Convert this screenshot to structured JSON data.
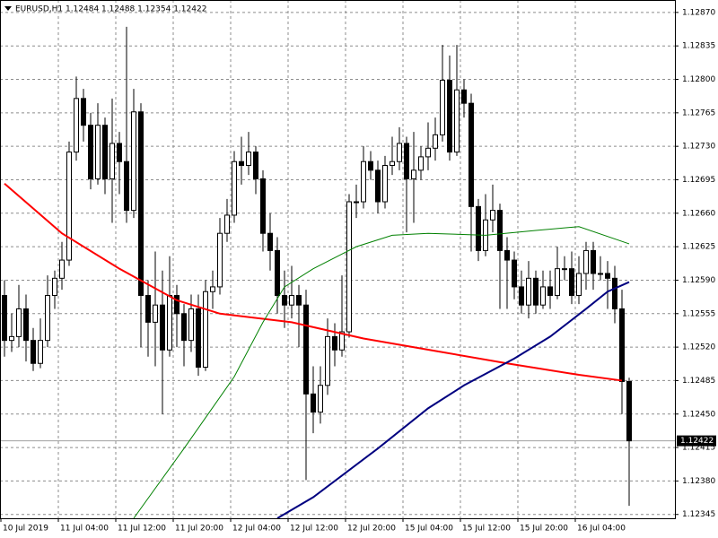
{
  "chart_data": {
    "type": "candlestick",
    "title": "EURUSD,H1  1.12484 1.12488 1.12354 1.12422",
    "categories": [
      "10 Jul 2019",
      null,
      null,
      null,
      null,
      null,
      null,
      null,
      "11 Jul 04:00",
      null,
      null,
      null,
      null,
      null,
      null,
      null,
      "11 Jul 12:00",
      null,
      null,
      null,
      null,
      null,
      null,
      null,
      "11 Jul 20:00",
      null,
      null,
      null,
      null,
      null,
      null,
      null,
      "12 Jul 04:00",
      null,
      null,
      null,
      null,
      null,
      null,
      null,
      "12 Jul 12:00",
      null,
      null,
      null,
      null,
      null,
      null,
      null,
      "12 Jul 20:00",
      null,
      null,
      null,
      null,
      null,
      null,
      null,
      "15 Jul 04:00",
      null,
      null,
      null,
      null,
      null,
      null,
      null,
      "15 Jul 12:00",
      null,
      null,
      null,
      null,
      null,
      null,
      null,
      "15 Jul 20:00",
      null,
      null,
      null,
      null,
      null,
      null,
      null,
      "16 Jul 04:00",
      null,
      null,
      null,
      null,
      null,
      null,
      null
    ],
    "open": [
      1.12574,
      1.12527,
      1.12531,
      1.1256,
      1.12527,
      1.12503,
      1.12527,
      1.12574,
      1.12592,
      1.12611,
      1.12724,
      1.1278,
      1.12752,
      1.12696,
      1.12752,
      1.12696,
      1.12733,
      1.12714,
      1.12663,
      1.12766,
      1.12574,
      1.12546,
      1.12564,
      1.12517,
      1.12574,
      1.12555,
      1.12527,
      1.1256,
      1.12499,
      1.12578,
      1.12583,
      1.12639,
      1.12658,
      1.12714,
      1.1271,
      1.12724,
      1.12696,
      1.12639,
      1.12621,
      1.12574,
      1.12564,
      1.12574,
      1.12564,
      1.12471,
      1.12452,
      1.1248,
      1.12531,
      1.12517,
      1.12536,
      1.12672,
      1.12672,
      1.12714,
      1.12705,
      1.12672,
      1.1271,
      1.12714,
      1.12733,
      1.12696,
      1.12705,
      1.12719,
      1.12728,
      1.12742,
      1.12799,
      1.12724,
      1.12789,
      1.12775,
      1.12667,
      1.12621,
      1.12653,
      1.12663,
      1.12621,
      1.12611,
      1.12583,
      1.12564,
      1.12592,
      1.12564,
      1.12583,
      1.12574,
      1.12602,
      1.12602,
      1.12574,
      1.12597,
      1.12621,
      1.12597,
      1.12597,
      1.12592,
      1.1256,
      1.12484
    ],
    "high": [
      1.1259,
      1.12555,
      1.12585,
      1.12575,
      1.1254,
      1.1255,
      1.12595,
      1.126,
      1.1263,
      1.12735,
      1.12803,
      1.1279,
      1.12765,
      1.12775,
      1.1276,
      1.1278,
      1.12745,
      1.12855,
      1.1279,
      1.12775,
      1.1259,
      1.1262,
      1.126,
      1.12615,
      1.12585,
      1.12565,
      1.12575,
      1.12575,
      1.1259,
      1.126,
      1.12655,
      1.12675,
      1.12725,
      1.1274,
      1.12745,
      1.1273,
      1.12705,
      1.1266,
      1.12635,
      1.126,
      1.12605,
      1.12585,
      1.1258,
      1.125,
      1.125,
      1.1255,
      1.12545,
      1.12595,
      1.1268,
      1.1269,
      1.1273,
      1.12725,
      1.12715,
      1.1272,
      1.1274,
      1.1275,
      1.1274,
      1.12745,
      1.1273,
      1.12755,
      1.1276,
      1.12836,
      1.12825,
      1.12836,
      1.128,
      1.12785,
      1.12675,
      1.1268,
      1.1269,
      1.1267,
      1.12635,
      1.1262,
      1.126,
      1.1261,
      1.126,
      1.126,
      1.126,
      1.12625,
      1.12615,
      1.1262,
      1.12615,
      1.1263,
      1.1263,
      1.12615,
      1.1261,
      1.12605,
      1.1258,
      1.12488
    ],
    "low": [
      1.1251,
      1.12515,
      1.1252,
      1.12505,
      1.12495,
      1.12498,
      1.1252,
      1.1256,
      1.1258,
      1.12605,
      1.12715,
      1.12735,
      1.12685,
      1.1269,
      1.1268,
      1.1265,
      1.1268,
      1.1265,
      1.12655,
      1.1252,
      1.1251,
      1.125,
      1.1245,
      1.1251,
      1.1252,
      1.125,
      1.12515,
      1.1249,
      1.12495,
      1.1256,
      1.12575,
      1.1263,
      1.1265,
      1.1269,
      1.127,
      1.1268,
      1.1262,
      1.126,
      1.12555,
      1.1254,
      1.1255,
      1.1252,
      1.12381,
      1.1243,
      1.1244,
      1.1247,
      1.125,
      1.1251,
      1.1253,
      1.12655,
      1.12665,
      1.12695,
      1.1266,
      1.12665,
      1.127,
      1.12705,
      1.1264,
      1.1265,
      1.12695,
      1.12705,
      1.12715,
      1.12735,
      1.12715,
      1.1272,
      1.1276,
      1.1262,
      1.1261,
      1.12615,
      1.1264,
      1.1256,
      1.1256,
      1.1257,
      1.12555,
      1.1255,
      1.12555,
      1.1256,
      1.1256,
      1.1257,
      1.1259,
      1.12565,
      1.12565,
      1.1258,
      1.1258,
      1.1259,
      1.1256,
      1.12545,
      1.1245,
      1.12354
    ],
    "close": [
      1.12527,
      1.12531,
      1.1256,
      1.12527,
      1.12503,
      1.12527,
      1.12574,
      1.12592,
      1.12611,
      1.12724,
      1.1278,
      1.12752,
      1.12696,
      1.12752,
      1.12696,
      1.12733,
      1.12714,
      1.12663,
      1.12766,
      1.12574,
      1.12546,
      1.12564,
      1.12517,
      1.12574,
      1.12555,
      1.12527,
      1.1256,
      1.12499,
      1.12578,
      1.12583,
      1.12639,
      1.12658,
      1.12714,
      1.1271,
      1.12724,
      1.12696,
      1.12639,
      1.12621,
      1.12574,
      1.12564,
      1.12574,
      1.12564,
      1.12471,
      1.12452,
      1.1248,
      1.12531,
      1.12517,
      1.12536,
      1.12672,
      1.12672,
      1.12714,
      1.12705,
      1.12672,
      1.1271,
      1.12714,
      1.12733,
      1.12696,
      1.12705,
      1.12719,
      1.12728,
      1.12742,
      1.12799,
      1.12724,
      1.12789,
      1.12775,
      1.12667,
      1.12621,
      1.12653,
      1.12663,
      1.12621,
      1.12611,
      1.12583,
      1.12564,
      1.12592,
      1.12564,
      1.12583,
      1.12574,
      1.12602,
      1.12602,
      1.12574,
      1.12597,
      1.12621,
      1.12597,
      1.12597,
      1.12592,
      1.1256,
      1.12484,
      1.12422
    ],
    "up_color": "#ffffff",
    "down_color": "#000000",
    "overlays": [
      {
        "color": "#ff0000",
        "x": [
          0,
          8,
          16,
          24,
          30,
          40,
          50,
          60,
          70,
          80,
          86
        ],
        "values": [
          1.12691,
          1.12639,
          1.12602,
          1.12569,
          1.12555,
          1.12546,
          1.12529,
          1.12516,
          1.12503,
          1.12491,
          1.12485
        ]
      },
      {
        "color": "#008000",
        "x": [
          18,
          25,
          32,
          36,
          39,
          43,
          49,
          54,
          59,
          67,
          74,
          80,
          87
        ],
        "values": [
          1.12341,
          1.12414,
          1.12489,
          1.12546,
          1.12583,
          1.12602,
          1.12625,
          1.12637,
          1.12639,
          1.12637,
          1.12642,
          1.12646,
          1.12628
        ]
      },
      {
        "color": "#000080",
        "x": [
          38,
          43,
          52,
          59,
          64,
          71,
          76,
          81,
          84,
          87
        ],
        "values": [
          1.12341,
          1.12363,
          1.12414,
          1.12456,
          1.1248,
          1.12508,
          1.12531,
          1.1256,
          1.12578,
          1.12588
        ]
      }
    ],
    "ylim": [
      1.12341,
      1.12883
    ],
    "yticks": [
      {
        "value": 1.1287,
        "label": "1.12870"
      },
      {
        "value": 1.12835,
        "label": "1.12835"
      },
      {
        "value": 1.128,
        "label": "1.12800"
      },
      {
        "value": 1.12765,
        "label": "1.12765"
      },
      {
        "value": 1.1273,
        "label": "1.12730"
      },
      {
        "value": 1.12695,
        "label": "1.12695"
      },
      {
        "value": 1.1266,
        "label": "1.12660"
      },
      {
        "value": 1.12625,
        "label": "1.12625"
      },
      {
        "value": 1.1259,
        "label": "1.12590"
      },
      {
        "value": 1.12555,
        "label": "1.12555"
      },
      {
        "value": 1.1252,
        "label": "1.12520"
      },
      {
        "value": 1.12485,
        "label": "1.12485"
      },
      {
        "value": 1.1245,
        "label": "1.12450"
      },
      {
        "value": 1.12415,
        "label": "1.12415"
      },
      {
        "value": 1.1238,
        "label": "1.12380"
      },
      {
        "value": 1.12345,
        "label": "1.12345"
      }
    ],
    "bid": {
      "value": 1.12422,
      "label": "1.12422"
    },
    "grid": true
  }
}
